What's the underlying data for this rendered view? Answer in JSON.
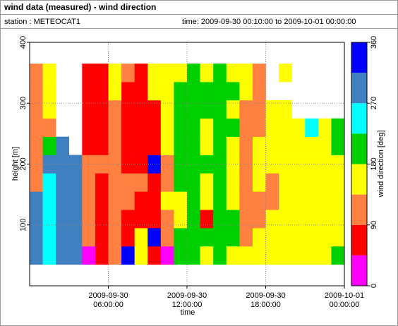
{
  "chart_data": {
    "type": "heatmap",
    "title": "wind data (measured) - wind direction",
    "station": "station : METEOCAT1",
    "time_range": "time: 2009-09-30 00:10:00 to 2009-10-01 00:00:00",
    "xlabel": "time",
    "ylabel": "height [m]",
    "colorbar_label": "wind direction [deg]",
    "x": [
      0,
      1,
      2,
      3,
      4,
      5,
      6,
      7,
      8,
      9,
      10,
      11,
      12,
      13,
      14,
      15,
      16,
      17,
      18,
      19,
      20,
      21,
      22,
      23
    ],
    "y": [
      35,
      65,
      95,
      125,
      155,
      185,
      215,
      245,
      275,
      305,
      335
    ],
    "values": [
      [
        290,
        290,
        290,
        290,
        120,
        120,
        120,
        120,
        120,
        120,
        120
      ],
      [
        250,
        250,
        250,
        250,
        250,
        290,
        200,
        120,
        150,
        150,
        150
      ],
      [
        290,
        290,
        290,
        290,
        290,
        290,
        290,
        null,
        null,
        null,
        null
      ],
      [
        290,
        290,
        290,
        290,
        290,
        290,
        null,
        null,
        null,
        null,
        null
      ],
      [
        20,
        100,
        120,
        120,
        120,
        120,
        80,
        80,
        80,
        80,
        80
      ],
      [
        70,
        70,
        70,
        70,
        70,
        120,
        70,
        70,
        70,
        70,
        70
      ],
      [
        120,
        120,
        120,
        120,
        120,
        120,
        120,
        120,
        120,
        160,
        160
      ],
      [
        330,
        70,
        70,
        120,
        120,
        70,
        70,
        70,
        70,
        70,
        120
      ],
      [
        160,
        160,
        70,
        70,
        120,
        70,
        70,
        70,
        70,
        70,
        70
      ],
      [
        70,
        330,
        70,
        70,
        70,
        330,
        70,
        70,
        70,
        160,
        160
      ],
      [
        20,
        120,
        120,
        160,
        120,
        120,
        160,
        160,
        160,
        160,
        160
      ],
      [
        200,
        200,
        160,
        160,
        200,
        200,
        200,
        200,
        200,
        200,
        160
      ],
      [
        200,
        200,
        200,
        200,
        200,
        200,
        200,
        200,
        200,
        200,
        200
      ],
      [
        160,
        200,
        70,
        160,
        160,
        200,
        160,
        160,
        200,
        200,
        160
      ],
      [
        200,
        200,
        200,
        200,
        200,
        200,
        200,
        200,
        200,
        200,
        200
      ],
      [
        160,
        200,
        200,
        160,
        160,
        160,
        160,
        200,
        160,
        200,
        160
      ],
      [
        160,
        120,
        120,
        120,
        120,
        120,
        120,
        120,
        120,
        160,
        160
      ],
      [
        160,
        160,
        120,
        120,
        160,
        160,
        160,
        120,
        120,
        120,
        120
      ],
      [
        160,
        160,
        160,
        120,
        120,
        160,
        160,
        160,
        160,
        null,
        null
      ],
      [
        160,
        160,
        160,
        160,
        160,
        160,
        160,
        160,
        160,
        null,
        160
      ],
      [
        160,
        160,
        160,
        160,
        160,
        160,
        160,
        160,
        null,
        null,
        null
      ],
      [
        160,
        160,
        160,
        160,
        160,
        160,
        160,
        250,
        null,
        null,
        null
      ],
      [
        160,
        160,
        160,
        160,
        160,
        160,
        160,
        160,
        null,
        null,
        null
      ],
      [
        200,
        160,
        160,
        160,
        160,
        160,
        200,
        200,
        null,
        null,
        null
      ]
    ],
    "xlim": [
      0,
      24
    ],
    "xticks": [
      {
        "value": 6,
        "label": "2009-09-30\n06:00:00"
      },
      {
        "value": 12,
        "label": "2009-09-30\n12:00:00"
      },
      {
        "value": 18,
        "label": "2009-09-30\n18:00:00"
      },
      {
        "value": 24,
        "label": "2009-10-01\n00:00:00"
      }
    ],
    "ylim": [
      0,
      400
    ],
    "yticks": [
      100,
      200,
      300,
      400
    ],
    "grid": true,
    "color_bounds": [
      0,
      45,
      90,
      135,
      180,
      225,
      270,
      315,
      360
    ],
    "colors": [
      "#ff00ff",
      "#ff0000",
      "#ff8040",
      "#ffff00",
      "#00d000",
      "#00ffff",
      "#4080c0",
      "#0000ff"
    ],
    "clim": [
      0,
      360
    ],
    "cticks": [
      0,
      90,
      180,
      270,
      360
    ]
  }
}
